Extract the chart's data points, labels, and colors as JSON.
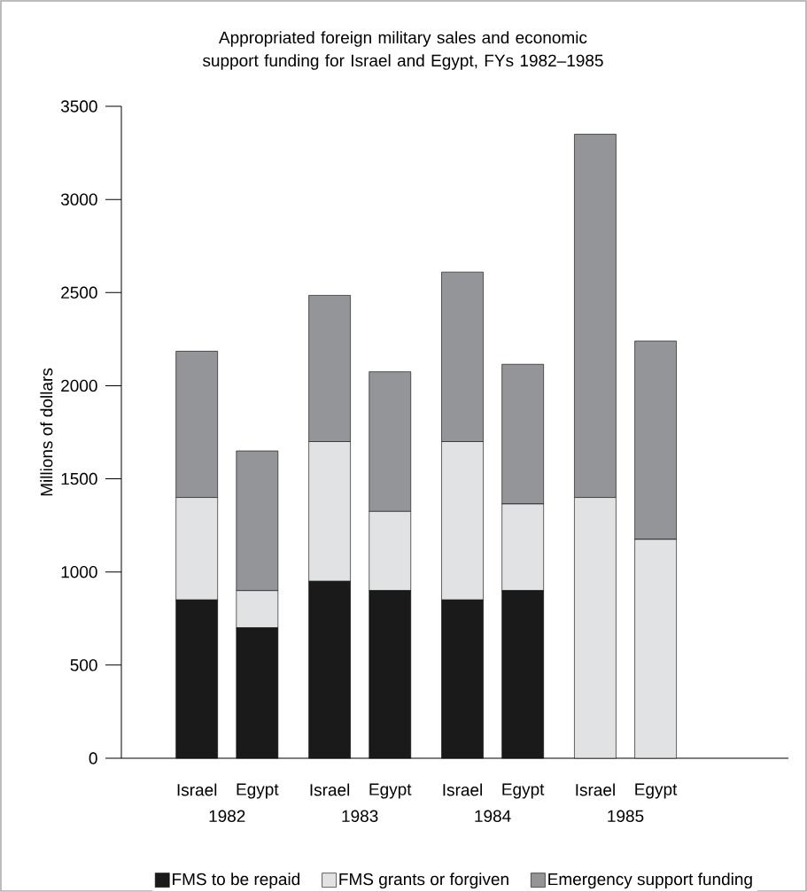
{
  "chart_data": {
    "type": "bar",
    "stacked": true,
    "title": "Appropriated foreign military sales and economic support funding for Israel and Egypt, FYs 1982–1985",
    "ylabel": "Millions of dollars",
    "categories": [
      "Israel",
      "Egypt",
      "Israel",
      "Egypt",
      "Israel",
      "Egypt",
      "Israel",
      "Egypt"
    ],
    "annotations": [
      "1982",
      "1983",
      "1984",
      "1985"
    ],
    "series": [
      {
        "name": "FMS to be repaid",
        "color": "#1a1a1a",
        "values": [
          850,
          700,
          950,
          900,
          850,
          900,
          0,
          0
        ]
      },
      {
        "name": "FMS grants or forgiven",
        "color": "#e1e2e4",
        "values": [
          550,
          200,
          750,
          425,
          850,
          465,
          1400,
          1175
        ]
      },
      {
        "name": "Emergency support funding",
        "color": "#939598",
        "values": [
          785,
          750,
          785,
          750,
          910,
          750,
          1950,
          1065
        ]
      }
    ],
    "ylim": [
      0,
      3500
    ],
    "yticks": [
      0,
      500,
      1000,
      1500,
      2000,
      2500,
      3000,
      3500
    ],
    "grid": false,
    "legend": "bottom"
  }
}
